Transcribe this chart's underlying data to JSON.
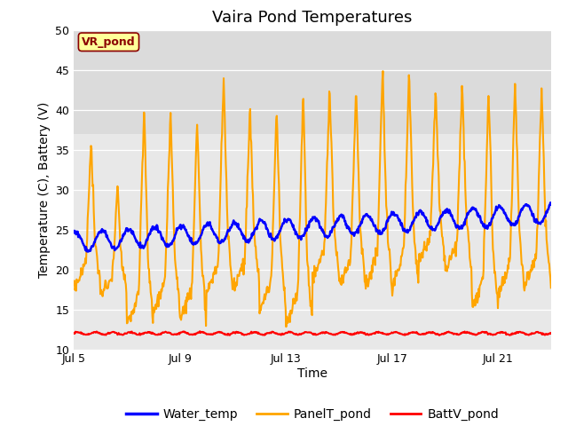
{
  "title": "Vaira Pond Temperatures",
  "xlabel": "Time",
  "ylabel": "Temperature (C), Battery (V)",
  "ylim": [
    10,
    50
  ],
  "yticks": [
    10,
    15,
    20,
    25,
    30,
    35,
    40,
    45,
    50
  ],
  "xlim_days": [
    0,
    18
  ],
  "xtick_positions": [
    0,
    4,
    8,
    12,
    16
  ],
  "xtick_labels": [
    "Jul 5",
    "Jul 9",
    "Jul 13",
    "Jul 17",
    "Jul 21"
  ],
  "water_color": "#0000ff",
  "panel_color": "#ffa500",
  "batt_color": "#ff0000",
  "water_linewidth": 1.8,
  "panel_linewidth": 1.5,
  "batt_linewidth": 1.5,
  "legend_labels": [
    "Water_temp",
    "PanelT_pond",
    "BattV_pond"
  ],
  "annotation_text": "VR_pond",
  "plot_bg_color": "#e8e8e8",
  "title_fontsize": 13,
  "axis_fontsize": 10,
  "tick_fontsize": 9,
  "legend_fontsize": 10
}
